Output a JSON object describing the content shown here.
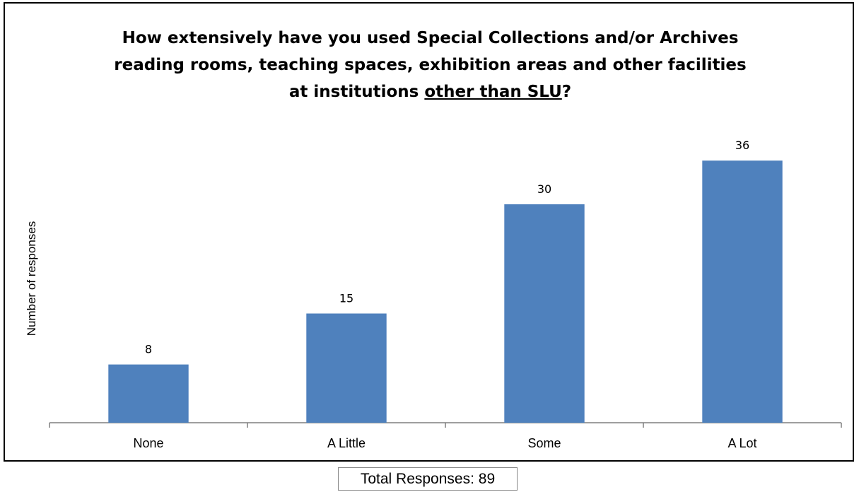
{
  "chart_data": {
    "type": "bar",
    "title": {
      "line1": "How extensively have you used Special Collections and/or Archives",
      "line2": "reading rooms, teaching spaces, exhibition areas and other facilities",
      "line3_pre": "at institutions ",
      "line3_underlined": "other than SLU",
      "line3_post": "?"
    },
    "ylabel": "Number of responses",
    "xlabel": "",
    "categories": [
      "None",
      "A Little",
      "Some",
      "A Lot"
    ],
    "values": [
      8,
      15,
      30,
      36
    ],
    "data_labels": [
      "8",
      "15",
      "30",
      "36"
    ],
    "ylim": [
      0,
      40
    ],
    "bar_color": "#4F81BD",
    "grid": false,
    "legend": "none"
  },
  "footer": {
    "total_label": "Total Responses: 89"
  }
}
